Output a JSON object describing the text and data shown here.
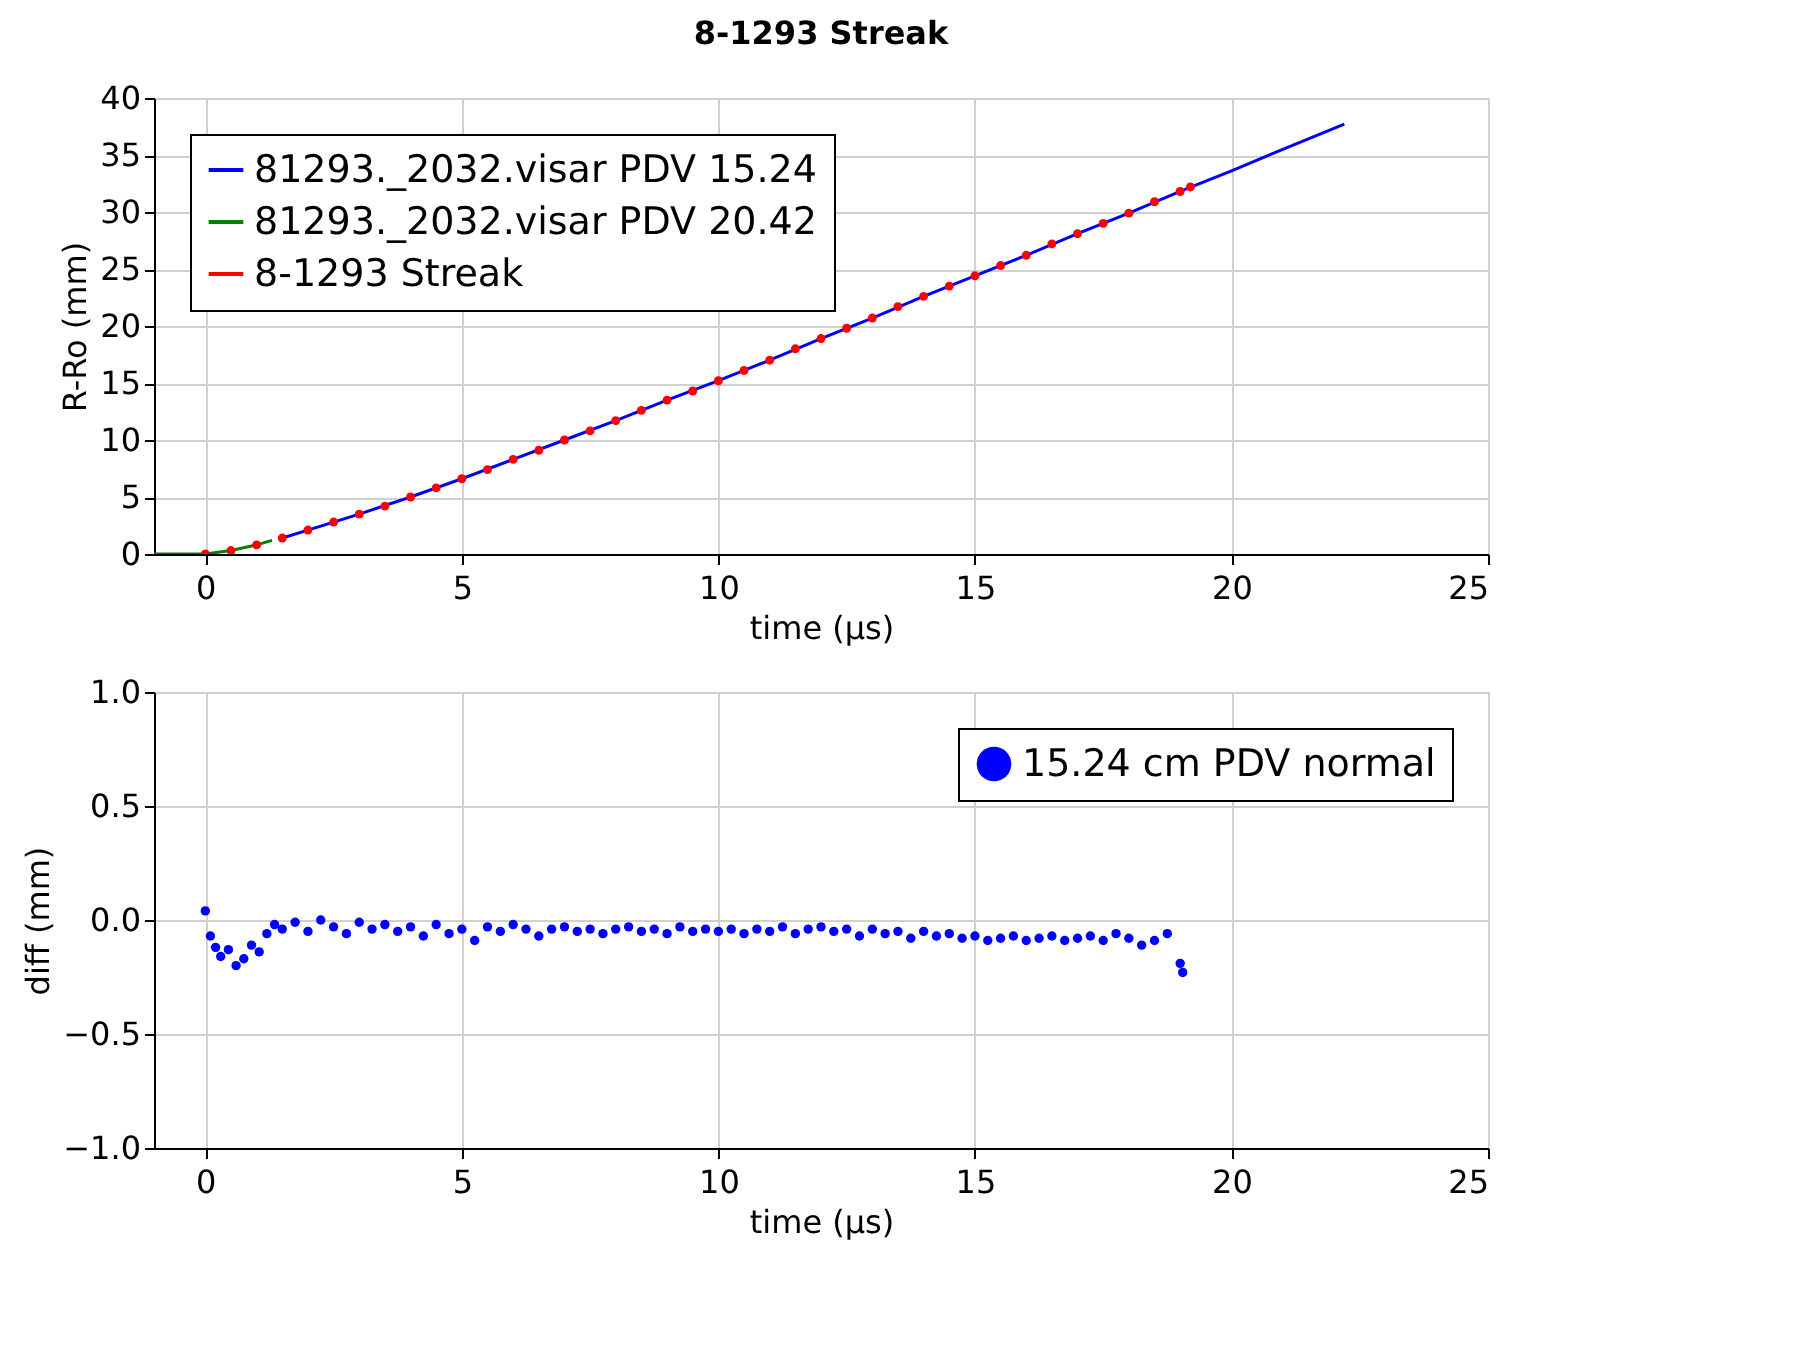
{
  "chart_data": [
    {
      "type": "line",
      "title": "8-1293 Streak",
      "xlabel": "time (μs)",
      "ylabel": "R-Ro (mm)",
      "xlim": [
        -1,
        25
      ],
      "xticks": [
        0,
        5,
        10,
        15,
        20,
        25
      ],
      "ylim": [
        0,
        40
      ],
      "yticks": [
        0,
        5,
        10,
        15,
        20,
        25,
        30,
        35,
        40
      ],
      "grid": true,
      "legend": "top left",
      "series": [
        {
          "name": "81293._2032.visar PDV 15.24",
          "color": "#0000ff",
          "type": "line",
          "marker": "none",
          "x": [
            1.5,
            2,
            3,
            4,
            5,
            6,
            7,
            8,
            9,
            10,
            11,
            12,
            13,
            14,
            15,
            16,
            17,
            18,
            19,
            20,
            21,
            22.2
          ],
          "values": [
            1.4,
            2.1,
            3.5,
            5.0,
            6.6,
            8.3,
            10.0,
            11.7,
            13.5,
            15.2,
            17.0,
            18.9,
            20.7,
            22.6,
            24.4,
            26.2,
            28.1,
            29.9,
            31.8,
            33.6,
            35.5,
            37.7
          ]
        },
        {
          "name": "81293._2032.visar PDV 20.42",
          "color": "#008000",
          "type": "line",
          "marker": "none",
          "x": [
            -1,
            0,
            0.5,
            1,
            1.3
          ],
          "values": [
            0,
            0,
            0.3,
            0.8,
            1.2
          ]
        },
        {
          "name": "8-1293 Streak",
          "color": "#ff0000",
          "type": "scatter",
          "marker": "circle",
          "x": [
            0,
            0.5,
            1,
            1.5,
            2,
            2.5,
            3,
            3.5,
            4,
            4.5,
            5,
            5.5,
            6,
            6.5,
            7,
            7.5,
            8,
            8.5,
            9,
            9.5,
            10,
            10.5,
            11,
            11.5,
            12,
            12.5,
            13,
            13.5,
            14,
            14.5,
            15,
            15.5,
            16,
            16.5,
            17,
            17.5,
            18,
            18.5,
            19,
            19.2
          ],
          "values": [
            0,
            0.3,
            0.8,
            1.4,
            2.1,
            2.8,
            3.5,
            4.2,
            5.0,
            5.8,
            6.6,
            7.4,
            8.3,
            9.1,
            10.0,
            10.8,
            11.7,
            12.6,
            13.5,
            14.3,
            15.2,
            16.1,
            17.0,
            18.0,
            18.9,
            19.8,
            20.7,
            21.7,
            22.6,
            23.5,
            24.4,
            25.3,
            26.2,
            27.2,
            28.1,
            29.0,
            29.9,
            30.9,
            31.8,
            32.2
          ]
        }
      ]
    },
    {
      "type": "scatter",
      "xlabel": "time (μs)",
      "ylabel": "diff (mm)",
      "xlim": [
        -1,
        25
      ],
      "xticks": [
        0,
        5,
        10,
        15,
        20,
        25
      ],
      "ylim": [
        -1,
        1
      ],
      "yticks": [
        {
          "value": -1,
          "label": "−1.0"
        },
        {
          "value": -0.5,
          "label": "−0.5"
        },
        {
          "value": 0,
          "label": "0.0"
        },
        {
          "value": 0.5,
          "label": "0.5"
        },
        {
          "value": 1,
          "label": "1.0"
        }
      ],
      "grid": true,
      "legend": "top right",
      "marker": "circle",
      "series": [
        {
          "name": "15.24 cm PDV normal",
          "color": "#0000ff",
          "x": [
            0,
            0.1,
            0.2,
            0.3,
            0.45,
            0.6,
            0.75,
            0.9,
            1.05,
            1.2,
            1.35,
            1.5,
            1.75,
            2,
            2.25,
            2.5,
            2.75,
            3,
            3.25,
            3.5,
            3.75,
            4,
            4.25,
            4.5,
            4.75,
            5,
            5.25,
            5.5,
            5.75,
            6,
            6.25,
            6.5,
            6.75,
            7,
            7.25,
            7.5,
            7.75,
            8,
            8.25,
            8.5,
            8.75,
            9,
            9.25,
            9.5,
            9.75,
            10,
            10.25,
            10.5,
            10.75,
            11,
            11.25,
            11.5,
            11.75,
            12,
            12.25,
            12.5,
            12.75,
            13,
            13.25,
            13.5,
            13.75,
            14,
            14.25,
            14.5,
            14.75,
            15,
            15.25,
            15.5,
            15.75,
            16,
            16.25,
            16.5,
            16.75,
            17,
            17.25,
            17.5,
            17.75,
            18,
            18.25,
            18.5,
            18.75,
            19,
            19.05
          ],
          "values": [
            0.04,
            -0.07,
            -0.12,
            -0.16,
            -0.13,
            -0.2,
            -0.17,
            -0.11,
            -0.14,
            -0.06,
            -0.02,
            -0.04,
            -0.01,
            -0.05,
            0.0,
            -0.03,
            -0.06,
            -0.01,
            -0.04,
            -0.02,
            -0.05,
            -0.03,
            -0.07,
            -0.02,
            -0.06,
            -0.04,
            -0.09,
            -0.03,
            -0.05,
            -0.02,
            -0.04,
            -0.07,
            -0.04,
            -0.03,
            -0.05,
            -0.04,
            -0.06,
            -0.04,
            -0.03,
            -0.05,
            -0.04,
            -0.06,
            -0.03,
            -0.05,
            -0.04,
            -0.05,
            -0.04,
            -0.06,
            -0.04,
            -0.05,
            -0.03,
            -0.06,
            -0.04,
            -0.03,
            -0.05,
            -0.04,
            -0.07,
            -0.04,
            -0.06,
            -0.05,
            -0.08,
            -0.05,
            -0.07,
            -0.06,
            -0.08,
            -0.07,
            -0.09,
            -0.08,
            -0.07,
            -0.09,
            -0.08,
            -0.07,
            -0.09,
            -0.08,
            -0.07,
            -0.09,
            -0.06,
            -0.08,
            -0.11,
            -0.09,
            -0.06,
            -0.19,
            -0.23
          ]
        }
      ]
    }
  ]
}
